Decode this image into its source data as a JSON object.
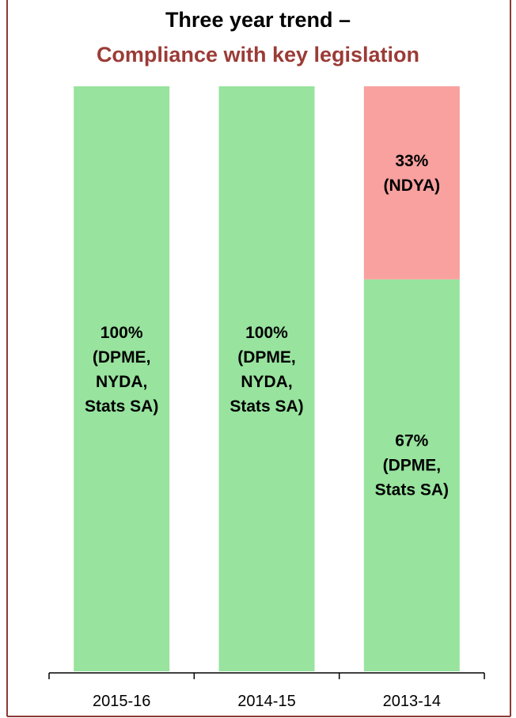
{
  "chart_data": {
    "type": "stacked-bar",
    "title": "Three year trend –",
    "subtitle": "Compliance with key legislation",
    "categories": [
      "2015-16",
      "2014-15",
      "2013-14"
    ],
    "ylim": [
      0,
      100
    ],
    "series": [
      {
        "color": "#98e39e",
        "values": [
          100,
          100,
          67
        ],
        "value_labels": [
          "100%\n(DPME,\nNYDA,\nStats SA)",
          "100%\n(DPME,\nNYDA,\nStats SA)",
          "67%\n(DPME,\nStats SA)"
        ]
      },
      {
        "color": "#f8a19f",
        "values": [
          0,
          0,
          33
        ],
        "value_labels": [
          null,
          null,
          "33%\n(NDYA)"
        ]
      }
    ]
  }
}
